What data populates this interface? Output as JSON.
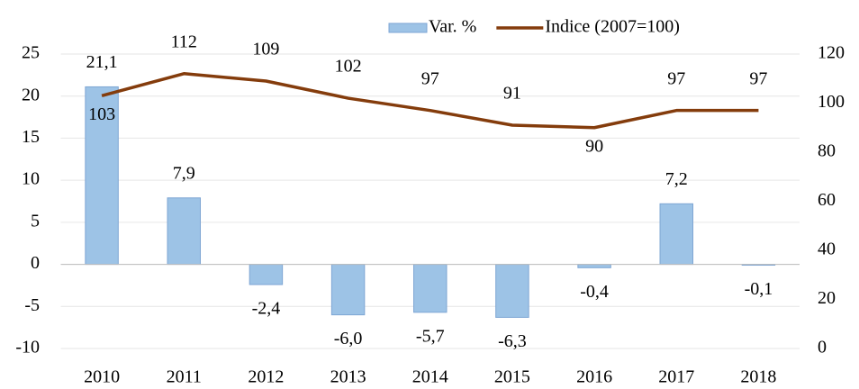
{
  "chart_data": {
    "type": "bar",
    "categories": [
      "2010",
      "2011",
      "2012",
      "2013",
      "2014",
      "2015",
      "2016",
      "2017",
      "2018"
    ],
    "series": [
      {
        "name": "Var. %",
        "type": "bar",
        "color": "#9dc3e6",
        "values": [
          21.1,
          7.9,
          -2.4,
          -6.0,
          -5.7,
          -6.3,
          -0.4,
          7.2,
          -0.1
        ],
        "value_labels": [
          "21,1",
          "7,9",
          "-2,4",
          "-6,0",
          "-5,7",
          "-6,3",
          "-0,4",
          "7,2",
          "-0,1"
        ]
      },
      {
        "name": "Indice (2007=100)",
        "type": "line",
        "axis": "y2",
        "color": "#843c0c",
        "values": [
          103,
          112,
          109,
          102,
          97,
          91,
          90,
          97,
          97
        ]
      }
    ],
    "ylim": [
      -10,
      25
    ],
    "yticks": [
      -10,
      -5,
      0,
      5,
      10,
      15,
      20,
      25
    ],
    "y2lim": [
      0,
      120
    ],
    "y2ticks": [
      0,
      20,
      40,
      60,
      80,
      100,
      120
    ],
    "grid": true,
    "legend": "top"
  }
}
